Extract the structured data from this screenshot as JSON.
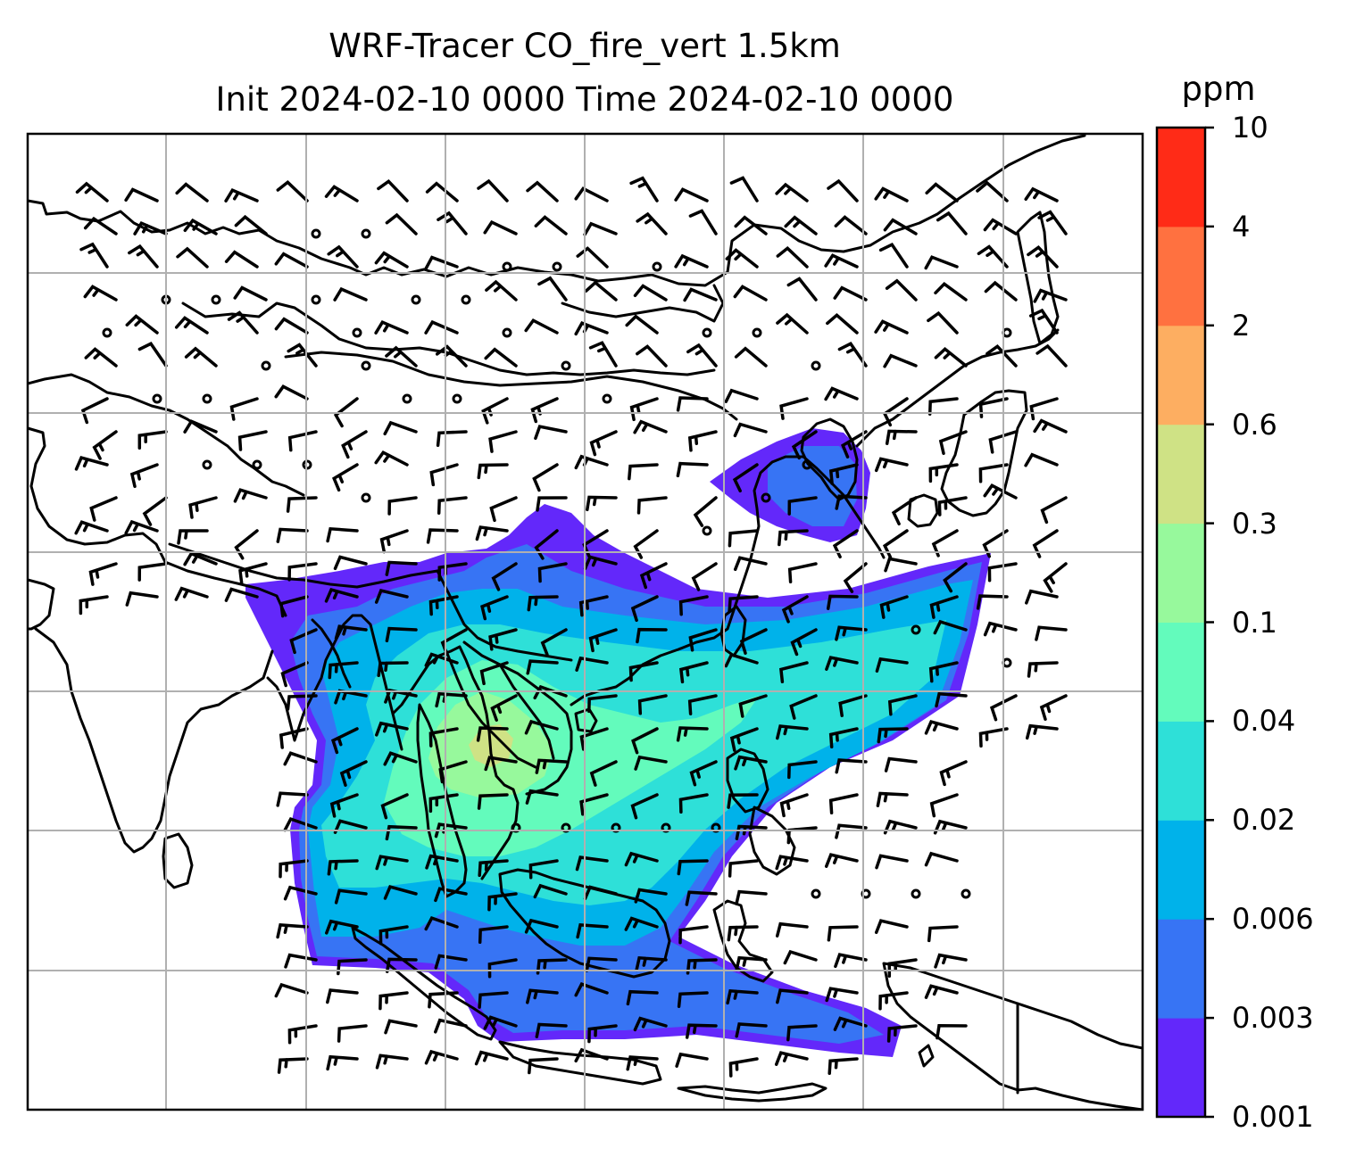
{
  "title": {
    "line1": "WRF-Tracer CO_fire_vert 1.5km",
    "line2": "Init 2024-02-10 0000 Time 2024-02-10 0000"
  },
  "colorbar": {
    "unit": "ppm",
    "levels": [
      "0.001",
      "0.003",
      "0.006",
      "0.02",
      "0.04",
      "0.1",
      "0.3",
      "0.6",
      "2",
      "4",
      "10"
    ],
    "colors": [
      "#6328fa",
      "#3774f4",
      "#00b2ea",
      "#2ee0d8",
      "#63fbbc",
      "#97f99c",
      "#cfe285",
      "#fdae61",
      "#ff7140",
      "#ff2b17"
    ]
  },
  "colors": {
    "coastline": "#000000",
    "gridline": "#b0b0b0",
    "barb": "#000000"
  }
}
